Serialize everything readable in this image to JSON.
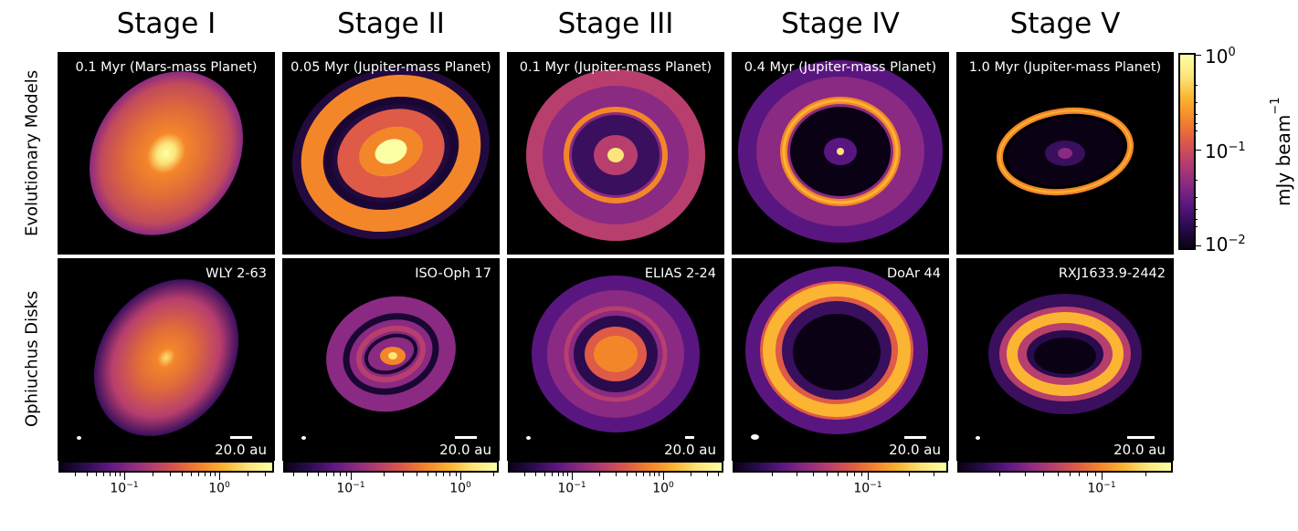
{
  "stages": [
    "Stage I",
    "Stage II",
    "Stage III",
    "Stage IV",
    "Stage V"
  ],
  "row_labels": {
    "models": "Evolutionary Models",
    "observations": "Ophiuchus Disks"
  },
  "models": [
    {
      "time": "0.1 Myr",
      "planet": "(Mars-mass Planet)"
    },
    {
      "time": "0.05 Myr",
      "planet": "(Jupiter-mass Planet)"
    },
    {
      "time": "0.1 Myr",
      "planet": "(Jupiter-mass Planet)"
    },
    {
      "time": "0.4 Myr",
      "planet": "(Jupiter-mass Planet)"
    },
    {
      "time": "1.0 Myr",
      "planet": "(Jupiter-mass Planet)"
    }
  ],
  "observations": [
    {
      "name": "WLY 2-63",
      "scale": "20.0 au"
    },
    {
      "name": "ISO-Oph 17",
      "scale": "20.0 au"
    },
    {
      "name": "ELIAS 2-24",
      "scale": "20.0 au"
    },
    {
      "name": "DoAr 44",
      "scale": "20.0 au"
    },
    {
      "name": "RXJ1633.9-2442",
      "scale": "20.0 au"
    }
  ],
  "colorbar_models": {
    "unit": "mJy beam",
    "unit_exponent": "−1",
    "ticks": [
      {
        "base": "10",
        "exp": "0"
      },
      {
        "base": "10",
        "exp": "−1"
      },
      {
        "base": "10",
        "exp": "−2"
      }
    ]
  },
  "colorbars_obs": [
    {
      "ticks": [
        {
          "base": "10",
          "exp": "−1"
        },
        {
          "base": "10",
          "exp": "0"
        }
      ]
    },
    {
      "ticks": [
        {
          "base": "10",
          "exp": "−1"
        },
        {
          "base": "10",
          "exp": "0"
        }
      ]
    },
    {
      "ticks": [
        {
          "base": "10",
          "exp": "−1"
        },
        {
          "base": "10",
          "exp": "0"
        }
      ]
    },
    {
      "ticks": [
        {
          "base": "10",
          "exp": "−1"
        }
      ]
    },
    {
      "ticks": [
        {
          "base": "10",
          "exp": "−1"
        }
      ]
    }
  ],
  "colormap": [
    "#000004",
    "#2a0b4e",
    "#5a1680",
    "#8a2a82",
    "#b83e6e",
    "#df5a47",
    "#f4862a",
    "#fbb532",
    "#fbe57a",
    "#fcffa4"
  ]
}
